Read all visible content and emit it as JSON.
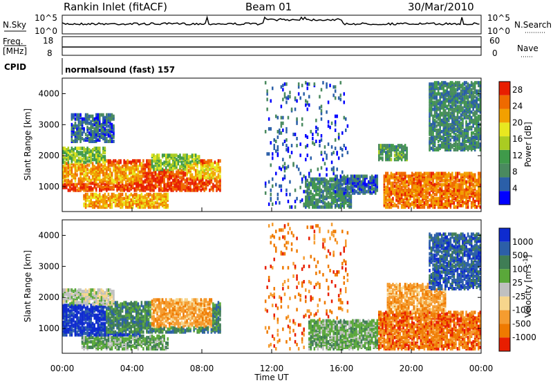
{
  "header": {
    "station": "Rankin Inlet (fitACF)",
    "beam": "Beam 01",
    "date": "30/Mar/2010"
  },
  "panels": {
    "nsky": {
      "label": "N.Sky",
      "left_ticks": [
        "10^5",
        "10^0"
      ],
      "right_ticks": [
        "10^5",
        "10^0"
      ],
      "right_label": "N.Search"
    },
    "freq": {
      "label_line1": "Freq.",
      "label_line2": "[MHz]",
      "left_ticks": [
        "18",
        "8"
      ],
      "right_ticks": [
        "60",
        "0"
      ],
      "right_label": "Nave"
    },
    "cpid": {
      "label": "CPID",
      "text": "normalsound (fast) 157"
    }
  },
  "colors": {
    "power": [
      "#0000ff",
      "#2b5fa8",
      "#4a8a5f",
      "#3f9a4a",
      "#aacc22",
      "#e8e820",
      "#f2a000",
      "#ef6a00",
      "#e81e00"
    ],
    "velocity": [
      "#0e2bcf",
      "#2c5fa8",
      "#3f7d55",
      "#5aa83a",
      "#c0c0c0",
      "#f6d58c",
      "#f59c30",
      "#ef7a00",
      "#e81e00"
    ]
  },
  "chart_data": [
    {
      "type": "heatmap",
      "name": "power",
      "xlabel": "",
      "ylabel": "Slant Range [km]",
      "x_range": [
        "00:00",
        "00:00"
      ],
      "ylim": [
        200,
        4500
      ],
      "y_ticks": [
        1000,
        2000,
        3000,
        4000
      ],
      "colorbar": {
        "label": "Power [dB]",
        "ticks": [
          4,
          8,
          12,
          16,
          20,
          24,
          28
        ],
        "range": [
          0,
          30
        ]
      },
      "regions": [
        {
          "t0": 0.0,
          "t1": 9.0,
          "r0": 800,
          "r1": 1800,
          "level": 27
        },
        {
          "t0": 0.0,
          "t1": 4.6,
          "r0": 1100,
          "r1": 1700,
          "level": 22
        },
        {
          "t0": 0.0,
          "t1": 2.5,
          "r0": 1700,
          "r1": 2200,
          "level": 14
        },
        {
          "t0": 5.0,
          "t1": 7.8,
          "r0": 1500,
          "r1": 2000,
          "level": 14
        },
        {
          "t0": 7.0,
          "t1": 9.0,
          "r0": 1200,
          "r1": 1700,
          "level": 20
        },
        {
          "t0": 1.2,
          "t1": 6.0,
          "r0": 250,
          "r1": 700,
          "level": 22
        },
        {
          "t0": 0.5,
          "t1": 3.0,
          "r0": 2400,
          "r1": 3300,
          "level": 6
        },
        {
          "t0": 11.5,
          "t1": 16.3,
          "r0": 250,
          "r1": 4300,
          "level": 5
        },
        {
          "t0": 13.8,
          "t1": 16.5,
          "r0": 250,
          "r1": 1200,
          "level": 9
        },
        {
          "t0": 15.5,
          "t1": 18.0,
          "r0": 700,
          "r1": 1300,
          "level": 6
        },
        {
          "t0": 18.3,
          "t1": 24.0,
          "r0": 250,
          "r1": 1400,
          "level": 24
        },
        {
          "t0": 18.0,
          "t1": 19.8,
          "r0": 1800,
          "r1": 2300,
          "level": 10
        },
        {
          "t0": 21.0,
          "t1": 24.0,
          "r0": 2100,
          "r1": 4300,
          "level": 8
        }
      ]
    },
    {
      "type": "heatmap",
      "name": "velocity",
      "xlabel": "Time UT",
      "ylabel": "Slant Range [km]",
      "x_ticks": [
        "00:00",
        "04:00",
        "08:00",
        "12:00",
        "16:00",
        "20:00",
        "00:00"
      ],
      "ylim": [
        200,
        4500
      ],
      "y_ticks": [
        1000,
        2000,
        3000,
        4000
      ],
      "colorbar": {
        "label": "Velocity [m s^-1]",
        "ticks": [
          "1000",
          "500",
          "100",
          "25",
          "-25",
          "-100",
          "-500",
          "-1000"
        ]
      },
      "regions": [
        {
          "t0": 0.0,
          "t1": 4.5,
          "r0": 700,
          "r1": 1700,
          "cls": 0
        },
        {
          "t0": 2.5,
          "t1": 9.0,
          "r0": 800,
          "r1": 1800,
          "cls": 2
        },
        {
          "t0": 0.0,
          "t1": 3.0,
          "r0": 1700,
          "r1": 2200,
          "cls": 4
        },
        {
          "t0": 5.0,
          "t1": 8.5,
          "r0": 1000,
          "r1": 1900,
          "cls": 6
        },
        {
          "t0": 1.0,
          "t1": 6.0,
          "r0": 250,
          "r1": 700,
          "cls": 3
        },
        {
          "t0": 11.5,
          "t1": 16.3,
          "r0": 250,
          "r1": 4300,
          "cls": 7
        },
        {
          "t0": 14.0,
          "t1": 18.0,
          "r0": 250,
          "r1": 1200,
          "cls": 3
        },
        {
          "t0": 18.0,
          "t1": 24.0,
          "r0": 250,
          "r1": 1500,
          "cls": 7
        },
        {
          "t0": 18.5,
          "t1": 22.0,
          "r0": 1500,
          "r1": 2400,
          "cls": 6
        },
        {
          "t0": 21.0,
          "t1": 24.0,
          "r0": 2200,
          "r1": 4000,
          "cls": 1
        }
      ]
    }
  ]
}
